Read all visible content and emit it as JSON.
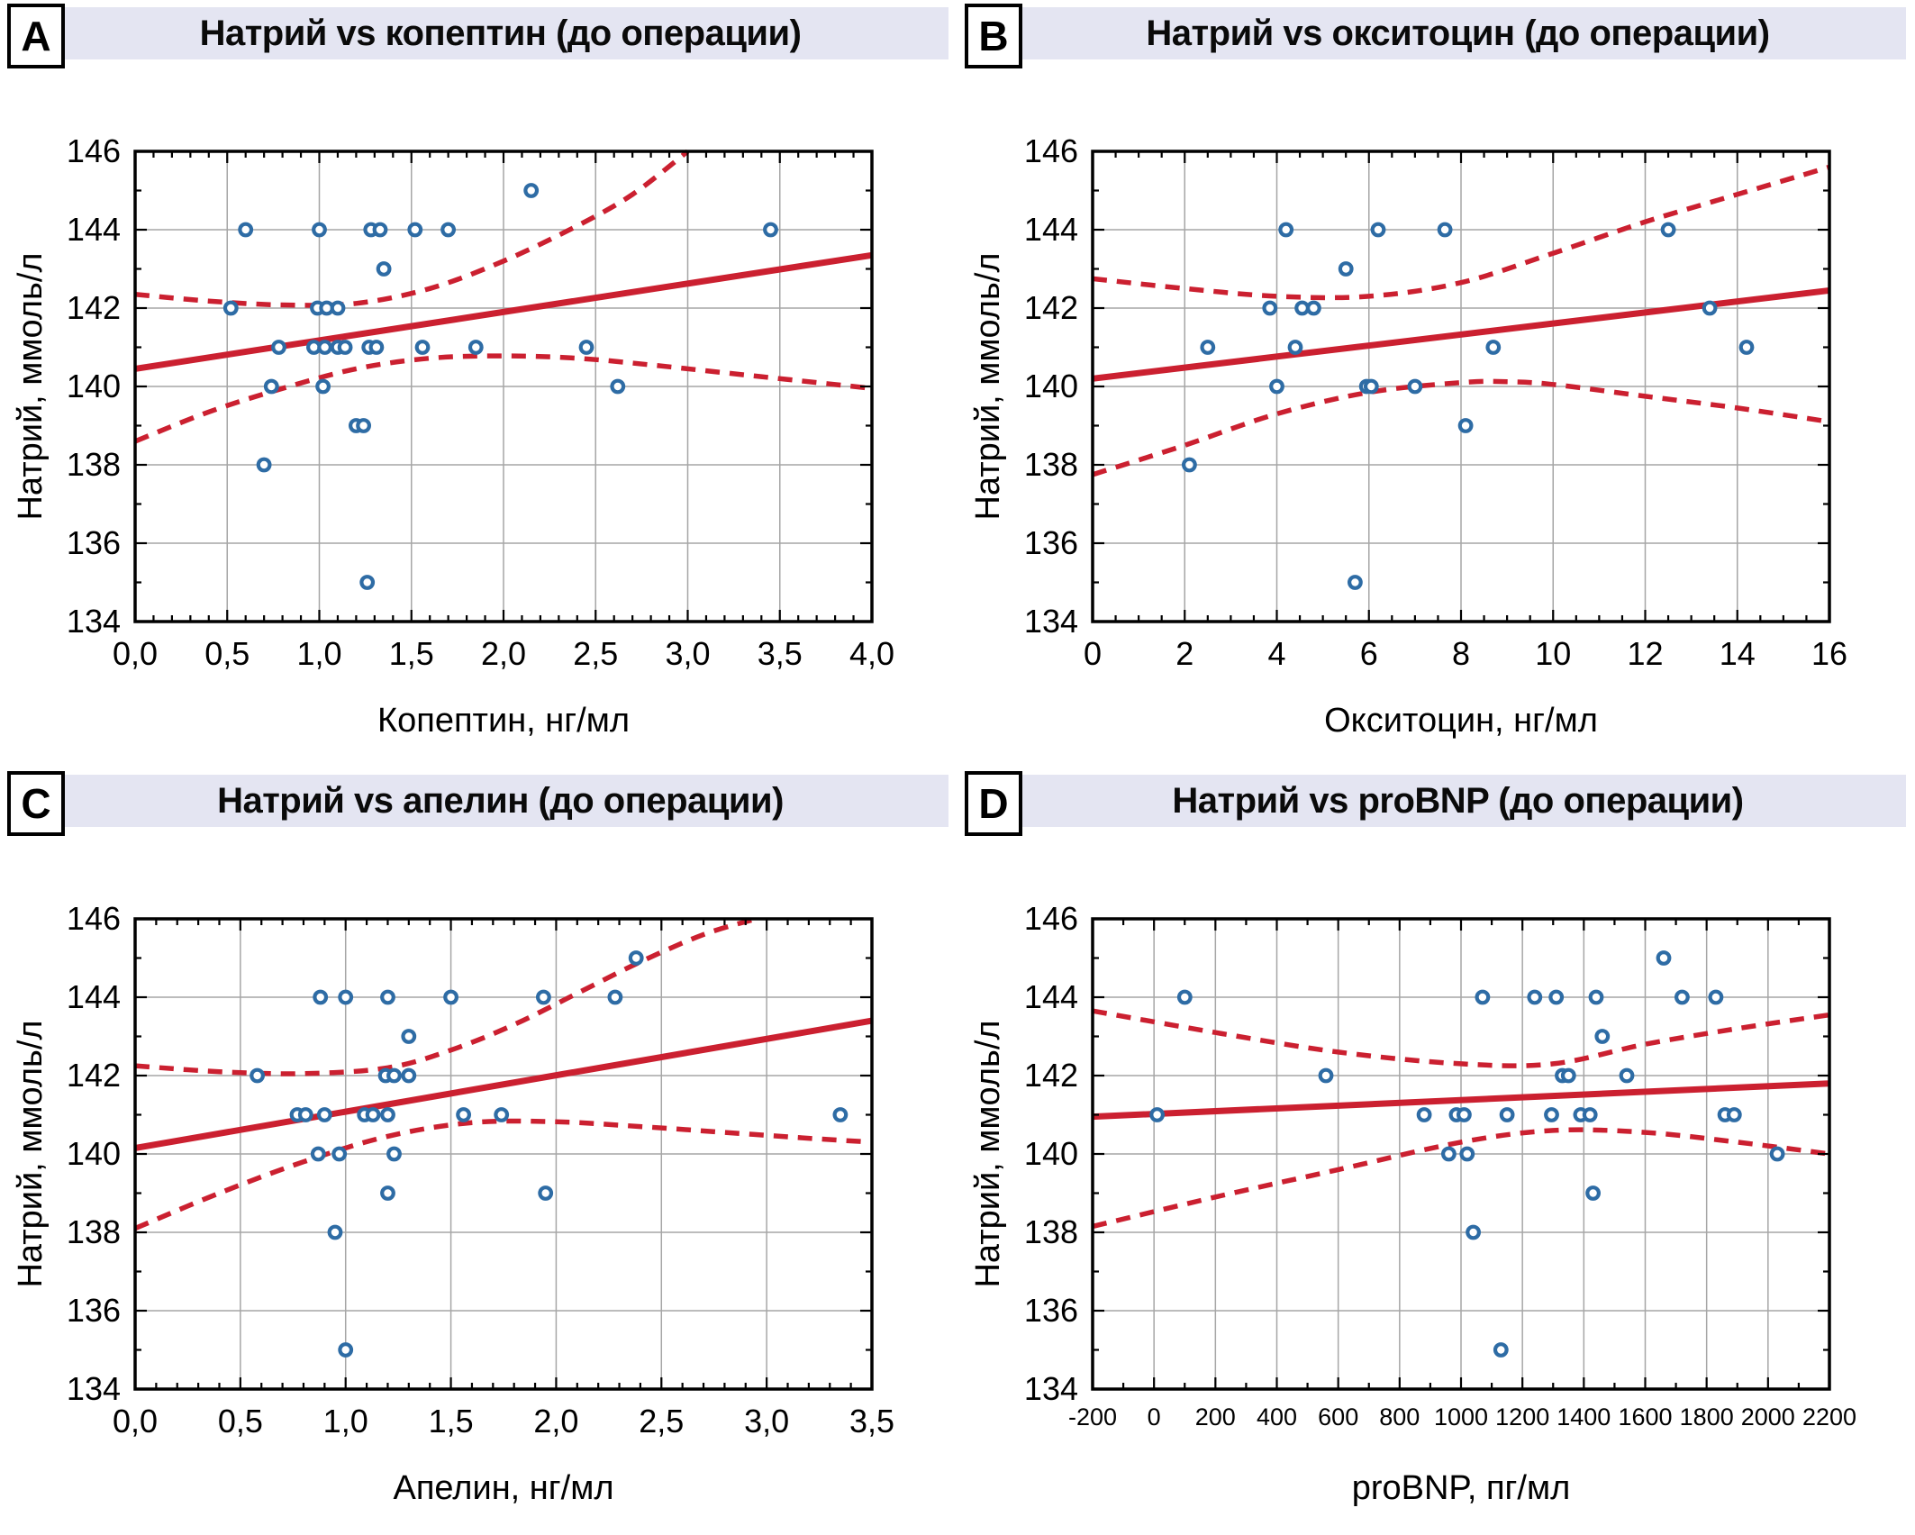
{
  "colors": {
    "title_bar_bg": "#e4e5f2",
    "regression_red": "#cb2030",
    "point_blue": "#2e6ca5",
    "grid_gray": "#a6a6a6",
    "axis_black": "#000000",
    "background": "#ffffff"
  },
  "chart_data": [
    {
      "type": "scatter",
      "panel_letter": "A",
      "title": "Натрий vs копептин (до операции)",
      "xlabel": "Копептин, нг/мл",
      "ylabel": "Натрий, ммоль/л",
      "xlim": [
        0,
        4
      ],
      "ylim": [
        134,
        146
      ],
      "x_ticks": [
        0,
        0.5,
        1,
        1.5,
        2,
        2.5,
        3,
        3.5,
        4
      ],
      "x_tick_labels": [
        "0,0",
        "0,5",
        "1,0",
        "1,5",
        "2,0",
        "2,5",
        "3,0",
        "3,5",
        "4,0"
      ],
      "x_minor_step": 0.1,
      "y_ticks": [
        134,
        136,
        138,
        140,
        142,
        144,
        146
      ],
      "y_tick_labels": [
        "134",
        "136",
        "138",
        "140",
        "142",
        "144",
        "146"
      ],
      "y_minor_step": 1,
      "grid": true,
      "points": [
        [
          0.6,
          144
        ],
        [
          1.0,
          144
        ],
        [
          1.28,
          144
        ],
        [
          1.33,
          144
        ],
        [
          1.52,
          144
        ],
        [
          1.7,
          144
        ],
        [
          2.15,
          145
        ],
        [
          3.45,
          144
        ],
        [
          1.35,
          143
        ],
        [
          0.52,
          142
        ],
        [
          0.99,
          142
        ],
        [
          1.04,
          142
        ],
        [
          1.1,
          142
        ],
        [
          0.78,
          141
        ],
        [
          0.97,
          141
        ],
        [
          1.03,
          141
        ],
        [
          1.1,
          141
        ],
        [
          1.14,
          141
        ],
        [
          1.27,
          141
        ],
        [
          1.31,
          141
        ],
        [
          1.56,
          141
        ],
        [
          1.85,
          141
        ],
        [
          2.45,
          141
        ],
        [
          0.74,
          140
        ],
        [
          1.02,
          140
        ],
        [
          2.62,
          140
        ],
        [
          1.2,
          139
        ],
        [
          1.24,
          139
        ],
        [
          0.7,
          138
        ],
        [
          1.26,
          135
        ]
      ],
      "regression_line": [
        [
          0,
          140.45
        ],
        [
          4,
          143.35
        ]
      ],
      "ci_upper": [
        [
          0,
          142.35
        ],
        [
          0.4,
          142.18
        ],
        [
          0.8,
          142.08
        ],
        [
          1.2,
          142.12
        ],
        [
          1.6,
          142.5
        ],
        [
          2.0,
          143.2
        ],
        [
          2.4,
          144.1
        ],
        [
          2.7,
          144.9
        ],
        [
          3.0,
          146.0
        ]
      ],
      "ci_lower": [
        [
          0,
          138.6
        ],
        [
          0.4,
          139.35
        ],
        [
          0.8,
          139.95
        ],
        [
          1.2,
          140.45
        ],
        [
          1.6,
          140.72
        ],
        [
          2.0,
          140.78
        ],
        [
          2.4,
          140.72
        ],
        [
          2.8,
          140.55
        ],
        [
          3.2,
          140.35
        ],
        [
          3.6,
          140.15
        ],
        [
          4.0,
          139.95
        ]
      ]
    },
    {
      "type": "scatter",
      "panel_letter": "B",
      "title": "Натрий vs окситоцин (до операции)",
      "xlabel": "Окситоцин, нг/мл",
      "ylabel": "Натрий, ммоль/л",
      "xlim": [
        0,
        16
      ],
      "ylim": [
        134,
        146
      ],
      "x_ticks": [
        0,
        2,
        4,
        6,
        8,
        10,
        12,
        14,
        16
      ],
      "x_tick_labels": [
        "0",
        "2",
        "4",
        "6",
        "8",
        "10",
        "12",
        "14",
        "16"
      ],
      "x_minor_step": 0.5,
      "y_ticks": [
        134,
        136,
        138,
        140,
        142,
        144,
        146
      ],
      "y_tick_labels": [
        "134",
        "136",
        "138",
        "140",
        "142",
        "144",
        "146"
      ],
      "y_minor_step": 1,
      "grid": true,
      "points": [
        [
          4.2,
          144
        ],
        [
          6.2,
          144
        ],
        [
          7.65,
          144
        ],
        [
          12.5,
          144
        ],
        [
          5.5,
          143
        ],
        [
          3.85,
          142
        ],
        [
          4.55,
          142
        ],
        [
          4.8,
          142
        ],
        [
          13.4,
          142
        ],
        [
          2.5,
          141
        ],
        [
          4.4,
          141
        ],
        [
          8.7,
          141
        ],
        [
          14.2,
          141
        ],
        [
          4.0,
          140
        ],
        [
          5.95,
          140
        ],
        [
          6.05,
          140
        ],
        [
          7.0,
          140
        ],
        [
          8.1,
          139
        ],
        [
          2.1,
          138
        ],
        [
          5.7,
          135
        ]
      ],
      "regression_line": [
        [
          0,
          140.2
        ],
        [
          16,
          142.45
        ]
      ],
      "ci_upper": [
        [
          0,
          142.75
        ],
        [
          2,
          142.5
        ],
        [
          4,
          142.3
        ],
        [
          6,
          142.3
        ],
        [
          8,
          142.65
        ],
        [
          10,
          143.4
        ],
        [
          12,
          144.2
        ],
        [
          14,
          144.9
        ],
        [
          16,
          145.6
        ]
      ],
      "ci_lower": [
        [
          0,
          137.75
        ],
        [
          2,
          138.5
        ],
        [
          4,
          139.3
        ],
        [
          6,
          139.85
        ],
        [
          8,
          140.1
        ],
        [
          9,
          140.12
        ],
        [
          10,
          140.05
        ],
        [
          12,
          139.75
        ],
        [
          14,
          139.45
        ],
        [
          16,
          139.1
        ]
      ]
    },
    {
      "type": "scatter",
      "panel_letter": "C",
      "title": "Натрий vs апелин (до операции)",
      "xlabel": "Апелин, нг/мл",
      "ylabel": "Натрий, ммоль/л",
      "xlim": [
        0,
        3.5
      ],
      "ylim": [
        134,
        146
      ],
      "x_ticks": [
        0,
        0.5,
        1,
        1.5,
        2,
        2.5,
        3,
        3.5
      ],
      "x_tick_labels": [
        "0,0",
        "0,5",
        "1,0",
        "1,5",
        "2,0",
        "2,5",
        "3,0",
        "3,5"
      ],
      "x_minor_step": 0.1,
      "y_ticks": [
        134,
        136,
        138,
        140,
        142,
        144,
        146
      ],
      "y_tick_labels": [
        "134",
        "136",
        "138",
        "140",
        "142",
        "144",
        "146"
      ],
      "y_minor_step": 1,
      "grid": true,
      "points": [
        [
          0.88,
          144
        ],
        [
          1.0,
          144
        ],
        [
          1.2,
          144
        ],
        [
          1.5,
          144
        ],
        [
          1.94,
          144
        ],
        [
          2.28,
          144
        ],
        [
          2.38,
          145
        ],
        [
          1.3,
          143
        ],
        [
          0.58,
          142
        ],
        [
          1.19,
          142
        ],
        [
          1.23,
          142
        ],
        [
          1.3,
          142
        ],
        [
          0.77,
          141
        ],
        [
          0.81,
          141
        ],
        [
          0.9,
          141
        ],
        [
          1.09,
          141
        ],
        [
          1.13,
          141
        ],
        [
          1.2,
          141
        ],
        [
          1.56,
          141
        ],
        [
          1.74,
          141
        ],
        [
          3.35,
          141
        ],
        [
          0.87,
          140
        ],
        [
          0.97,
          140
        ],
        [
          1.23,
          140
        ],
        [
          1.2,
          139
        ],
        [
          1.95,
          139
        ],
        [
          0.95,
          138
        ],
        [
          1.0,
          135
        ]
      ],
      "regression_line": [
        [
          0,
          140.15
        ],
        [
          3.5,
          143.4
        ]
      ],
      "ci_upper": [
        [
          0,
          142.25
        ],
        [
          0.4,
          142.1
        ],
        [
          0.8,
          142.05
        ],
        [
          1.2,
          142.2
        ],
        [
          1.5,
          142.65
        ],
        [
          1.8,
          143.3
        ],
        [
          2.1,
          144.1
        ],
        [
          2.4,
          144.9
        ],
        [
          2.7,
          145.6
        ],
        [
          2.95,
          146.0
        ]
      ],
      "ci_lower": [
        [
          0,
          138.1
        ],
        [
          0.4,
          139.0
        ],
        [
          0.8,
          139.8
        ],
        [
          1.2,
          140.45
        ],
        [
          1.6,
          140.8
        ],
        [
          2.0,
          140.82
        ],
        [
          2.4,
          140.7
        ],
        [
          2.8,
          140.55
        ],
        [
          3.2,
          140.4
        ],
        [
          3.5,
          140.3
        ]
      ]
    },
    {
      "type": "scatter",
      "panel_letter": "D",
      "title": "Натрий vs proBNP (до операции)",
      "xlabel": "proBNP, пг/мл",
      "ylabel": "Натрий, ммоль/л",
      "xlim": [
        -200,
        2200
      ],
      "ylim": [
        134,
        146
      ],
      "x_ticks": [
        -200,
        0,
        200,
        400,
        600,
        800,
        1000,
        1200,
        1400,
        1600,
        1800,
        2000,
        2200
      ],
      "x_tick_labels": [
        "-200",
        "0",
        "200",
        "400",
        "600",
        "800",
        "1000",
        "1200",
        "1400",
        "1600",
        "1800",
        "2000",
        "2200"
      ],
      "x_minor_step": 100,
      "y_ticks": [
        134,
        136,
        138,
        140,
        142,
        144,
        146
      ],
      "y_tick_labels": [
        "134",
        "136",
        "138",
        "140",
        "142",
        "144",
        "146"
      ],
      "y_minor_step": 1,
      "grid": true,
      "points": [
        [
          100,
          144
        ],
        [
          1070,
          144
        ],
        [
          1240,
          144
        ],
        [
          1310,
          144
        ],
        [
          1440,
          144
        ],
        [
          1720,
          144
        ],
        [
          1830,
          144
        ],
        [
          1660,
          145
        ],
        [
          1460,
          143
        ],
        [
          560,
          142
        ],
        [
          1330,
          142
        ],
        [
          1350,
          142
        ],
        [
          1540,
          142
        ],
        [
          10,
          141
        ],
        [
          880,
          141
        ],
        [
          985,
          141
        ],
        [
          1010,
          141
        ],
        [
          1150,
          141
        ],
        [
          1295,
          141
        ],
        [
          1390,
          141
        ],
        [
          1420,
          141
        ],
        [
          1860,
          141
        ],
        [
          1890,
          141
        ],
        [
          960,
          140
        ],
        [
          1020,
          140
        ],
        [
          2030,
          140
        ],
        [
          1430,
          139
        ],
        [
          1040,
          138
        ],
        [
          1130,
          135
        ]
      ],
      "regression_line": [
        [
          -200,
          140.95
        ],
        [
          2200,
          141.8
        ]
      ],
      "ci_upper": [
        [
          -200,
          143.65
        ],
        [
          200,
          143.1
        ],
        [
          600,
          142.6
        ],
        [
          1000,
          142.3
        ],
        [
          1300,
          142.3
        ],
        [
          1600,
          142.8
        ],
        [
          1900,
          143.2
        ],
        [
          2200,
          143.55
        ]
      ],
      "ci_lower": [
        [
          -200,
          138.15
        ],
        [
          200,
          138.9
        ],
        [
          600,
          139.6
        ],
        [
          1000,
          140.3
        ],
        [
          1300,
          140.6
        ],
        [
          1600,
          140.55
        ],
        [
          1900,
          140.3
        ],
        [
          2200,
          140.0
        ]
      ]
    }
  ]
}
